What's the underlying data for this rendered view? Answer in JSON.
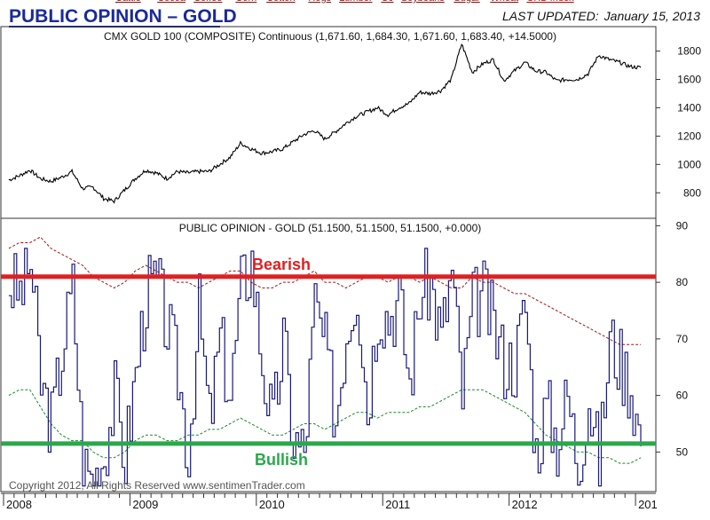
{
  "header": {
    "title": "PUBLIC OPINION – GOLD",
    "last_updated_label": "LAST UPDATED:",
    "last_updated_date": "January 15, 2013",
    "nav_links": [
      "Cattle",
      "Cocoa",
      "Coffee",
      "Corn",
      "Cotton",
      "Hogs",
      "Lumber",
      "OJ",
      "Soybeans",
      "Sugar",
      "Wheat",
      "CRB Index"
    ]
  },
  "footer": {
    "copyright": "Copyright 2012, All Rights Reserved  www.sentimenTrader.com"
  },
  "colors": {
    "title": "#1a2a9a",
    "bearish": "#e02020",
    "bullish": "#2aa84a",
    "sentiment_line": "#1a1a7a",
    "upper_band": "#a01818",
    "lower_band": "#1a8a2a",
    "price_line": "#000000"
  },
  "chart_data": [
    {
      "type": "line",
      "title": "CMX GOLD 100 (COMPOSITE) Continuous (1,671.60, 1,684.30, 1,671.60, 1,683.40, +14.5000)",
      "x": [
        "2008-01",
        "2008-02",
        "2008-03",
        "2008-04",
        "2008-05",
        "2008-06",
        "2008-07",
        "2008-08",
        "2008-09",
        "2008-10",
        "2008-11",
        "2008-12",
        "2009-01",
        "2009-02",
        "2009-03",
        "2009-04",
        "2009-05",
        "2009-06",
        "2009-07",
        "2009-08",
        "2009-09",
        "2009-10",
        "2009-11",
        "2009-12",
        "2010-01",
        "2010-02",
        "2010-03",
        "2010-04",
        "2010-05",
        "2010-06",
        "2010-07",
        "2010-08",
        "2010-09",
        "2010-10",
        "2010-11",
        "2010-12",
        "2011-01",
        "2011-02",
        "2011-03",
        "2011-04",
        "2011-05",
        "2011-06",
        "2011-07",
        "2011-08",
        "2011-09",
        "2011-10",
        "2011-11",
        "2011-12",
        "2012-01",
        "2012-02",
        "2012-03",
        "2012-04",
        "2012-05",
        "2012-06",
        "2012-07",
        "2012-08",
        "2012-09",
        "2012-10",
        "2012-11",
        "2012-12",
        "2013-01"
      ],
      "series": [
        {
          "values": [
            890,
            920,
            960,
            900,
            880,
            910,
            950,
            830,
            840,
            760,
            740,
            820,
            900,
            960,
            940,
            900,
            950,
            940,
            950,
            950,
            1000,
            1050,
            1150,
            1110,
            1080,
            1090,
            1110,
            1160,
            1210,
            1240,
            1180,
            1230,
            1290,
            1340,
            1370,
            1400,
            1350,
            1400,
            1430,
            1510,
            1500,
            1520,
            1600,
            1850,
            1650,
            1710,
            1740,
            1590,
            1660,
            1720,
            1660,
            1650,
            1590,
            1600,
            1600,
            1640,
            1770,
            1740,
            1720,
            1690,
            1683
          ]
        }
      ],
      "yticks": [
        800,
        1000,
        1200,
        1400,
        1600,
        1800
      ],
      "ylim": [
        620,
        1960
      ]
    },
    {
      "type": "line",
      "title": "PUBLIC OPINION - GOLD (51.1500, 51.1500, 51.1500, +0.000)",
      "x": [
        "2008-01",
        "2008-02",
        "2008-03",
        "2008-04",
        "2008-05",
        "2008-06",
        "2008-07",
        "2008-08",
        "2008-09",
        "2008-10",
        "2008-11",
        "2008-12",
        "2009-01",
        "2009-02",
        "2009-03",
        "2009-04",
        "2009-05",
        "2009-06",
        "2009-07",
        "2009-08",
        "2009-09",
        "2009-10",
        "2009-11",
        "2009-12",
        "2010-01",
        "2010-02",
        "2010-03",
        "2010-04",
        "2010-05",
        "2010-06",
        "2010-07",
        "2010-08",
        "2010-09",
        "2010-10",
        "2010-11",
        "2010-12",
        "2011-01",
        "2011-02",
        "2011-03",
        "2011-04",
        "2011-05",
        "2011-06",
        "2011-07",
        "2011-08",
        "2011-09",
        "2011-10",
        "2011-11",
        "2011-12",
        "2012-01",
        "2012-02",
        "2012-03",
        "2012-04",
        "2012-05",
        "2012-06",
        "2012-07",
        "2012-08",
        "2012-09",
        "2012-10",
        "2012-11",
        "2012-12",
        "2013-01"
      ],
      "series": [
        {
          "values": [
            80,
            78,
            84,
            62,
            55,
            68,
            79,
            48,
            45,
            50,
            60,
            49,
            64,
            78,
            80,
            72,
            64,
            50,
            75,
            55,
            70,
            60,
            79,
            84,
            66,
            54,
            70,
            52,
            50,
            76,
            68,
            56,
            72,
            80,
            58,
            76,
            74,
            77,
            62,
            78,
            80,
            70,
            82,
            60,
            76,
            78,
            72,
            66,
            66,
            76,
            50,
            58,
            52,
            60,
            48,
            60,
            48,
            70,
            66,
            62,
            51
          ]
        },
        {
          "values": [
            86,
            87,
            87,
            88,
            86,
            85,
            84,
            83,
            81,
            80,
            79,
            80,
            82,
            83,
            82,
            81,
            80,
            80,
            79,
            80,
            81,
            82,
            82,
            80,
            79,
            79,
            80,
            80,
            81,
            82,
            80,
            80,
            79,
            80,
            81,
            81,
            80,
            81,
            81,
            80,
            81,
            80,
            79,
            79,
            81,
            80,
            80,
            79,
            78,
            78,
            77,
            76,
            75,
            74,
            73,
            72,
            71,
            70,
            69,
            69,
            69
          ]
        },
        {
          "values": [
            60,
            61,
            61,
            58,
            55,
            53,
            52,
            52,
            50,
            49,
            49,
            50,
            52,
            53,
            53,
            52,
            52,
            53,
            53,
            54,
            54,
            55,
            56,
            55,
            54,
            53,
            53,
            54,
            55,
            55,
            54,
            55,
            56,
            57,
            57,
            56,
            57,
            57,
            57,
            58,
            58,
            59,
            60,
            61,
            61,
            61,
            60,
            59,
            58,
            57,
            55,
            53,
            52,
            51,
            50,
            50,
            49,
            49,
            48,
            48,
            49
          ]
        }
      ],
      "yticks": [
        50,
        60,
        70,
        80,
        90
      ],
      "ylim": [
        43,
        91
      ],
      "reference_lines": [
        {
          "label": "Bearish",
          "value": 81
        },
        {
          "label": "Bullish",
          "value": 51.5
        }
      ]
    }
  ],
  "x_axis": {
    "year_labels": [
      "2008",
      "2009",
      "2010",
      "2011",
      "2012",
      "201"
    ]
  }
}
